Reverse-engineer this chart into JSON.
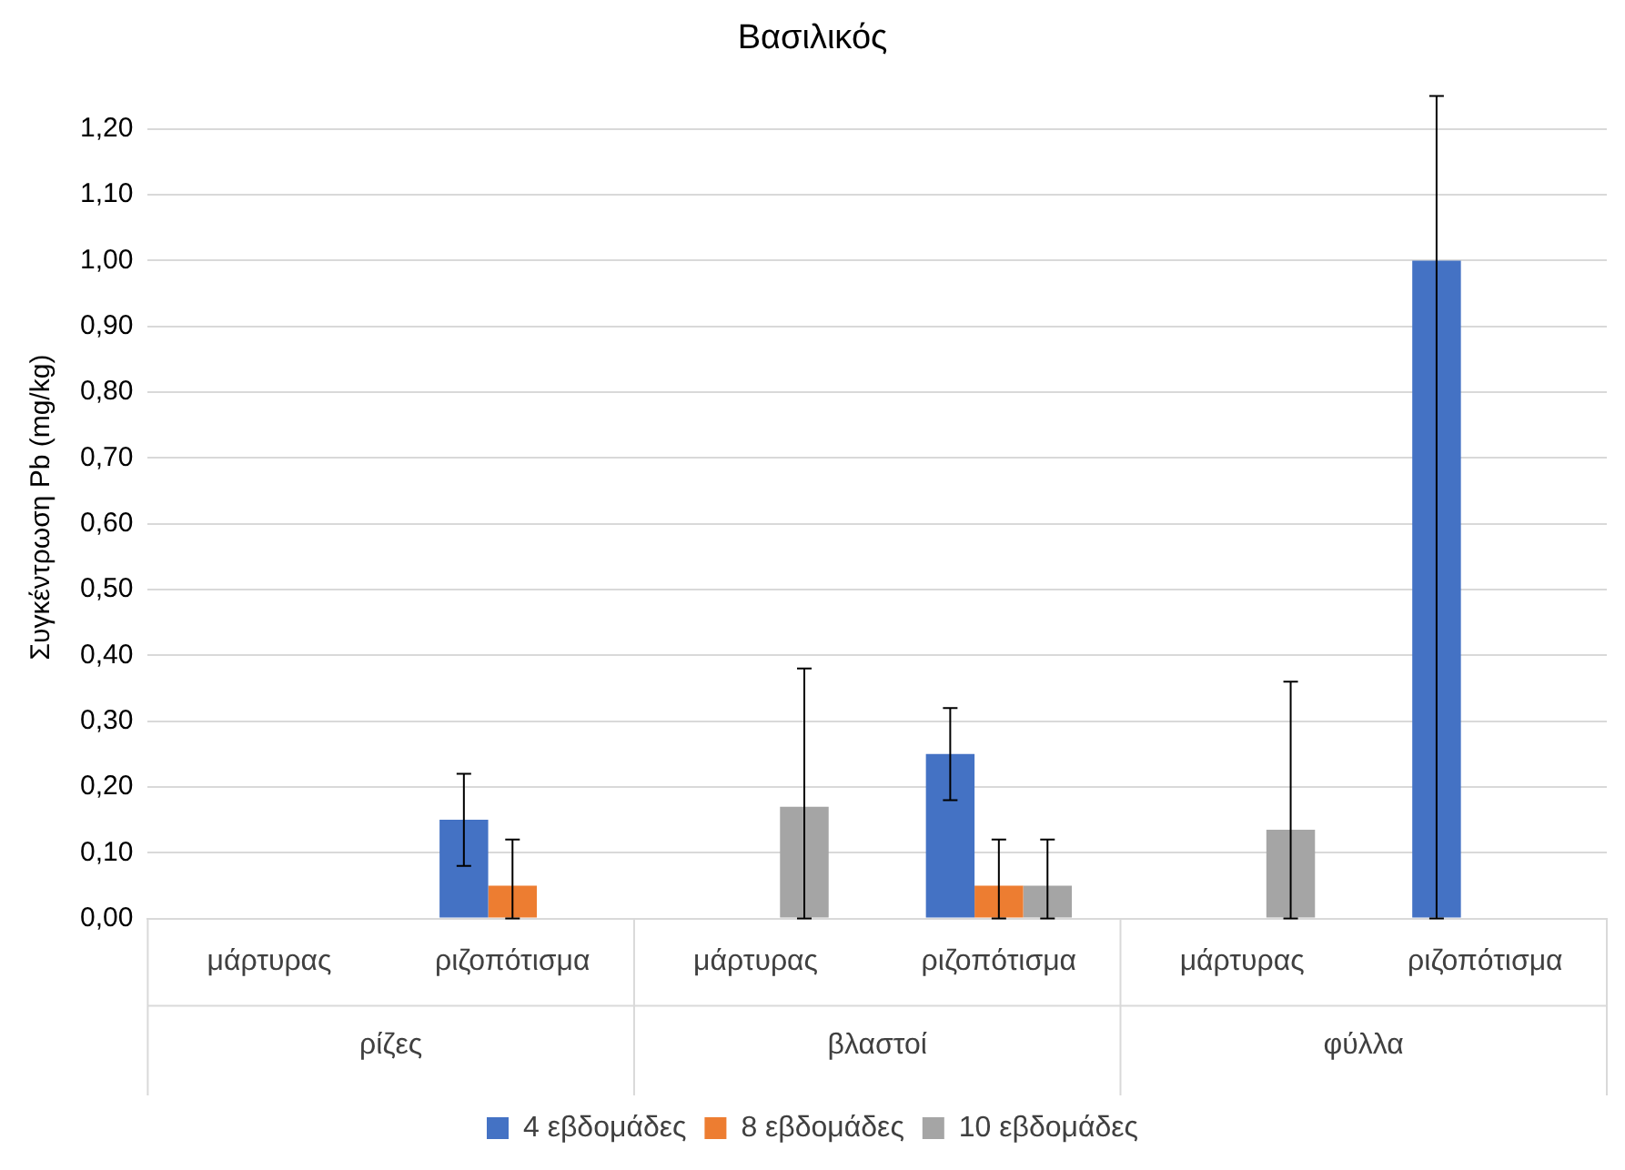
{
  "chart_data": {
    "type": "bar",
    "title": "Βασιλικός",
    "ylabel": "Συγκέντρωση Pb (mg/kg)",
    "categories": [
      "μάρτυρας",
      "ριζοπότισμα",
      "μάρτυρας",
      "ριζοπότισμα",
      "μάρτυρας",
      "ριζοπότισμα"
    ],
    "annotations": [
      "ρίζες",
      "βλαστοί",
      "φύλλα"
    ],
    "series": [
      {
        "name": "4 εβδομάδες",
        "color": "#4472c4",
        "values": [
          null,
          0.15,
          null,
          0.25,
          null,
          1.0
        ],
        "errors": [
          null,
          0.07,
          null,
          0.07,
          null,
          [
            0,
            1.25
          ]
        ]
      },
      {
        "name": "8 εβδομάδες",
        "color": "#ed7d31",
        "values": [
          null,
          0.05,
          null,
          0.05,
          null,
          null
        ],
        "errors": [
          null,
          [
            0,
            0.12
          ],
          null,
          [
            0,
            0.12
          ],
          null,
          null
        ]
      },
      {
        "name": "10 εβδομάδες",
        "color": "#a5a5a5",
        "values": [
          null,
          null,
          0.17,
          0.05,
          0.135,
          null
        ],
        "errors": [
          null,
          null,
          [
            0,
            0.38
          ],
          [
            0,
            0.12
          ],
          [
            0,
            0.36
          ],
          null
        ]
      }
    ],
    "ylim": [
      0,
      1.25
    ],
    "yticks": [
      {
        "value": 0,
        "label": "0,00"
      },
      {
        "value": 0.1,
        "label": "0,10"
      },
      {
        "value": 0.2,
        "label": "0,20"
      },
      {
        "value": 0.3,
        "label": "0,30"
      },
      {
        "value": 0.4,
        "label": "0,40"
      },
      {
        "value": 0.5,
        "label": "0,50"
      },
      {
        "value": 0.6,
        "label": "0,60"
      },
      {
        "value": 0.7,
        "label": "0,70"
      },
      {
        "value": 0.8,
        "label": "0,80"
      },
      {
        "value": 0.9,
        "label": "0,90"
      },
      {
        "value": 1.0,
        "label": "1,00"
      },
      {
        "value": 1.1,
        "label": "1,10"
      },
      {
        "value": 1.2,
        "label": "1,20"
      }
    ],
    "grid": "y",
    "legend": "bottom"
  }
}
